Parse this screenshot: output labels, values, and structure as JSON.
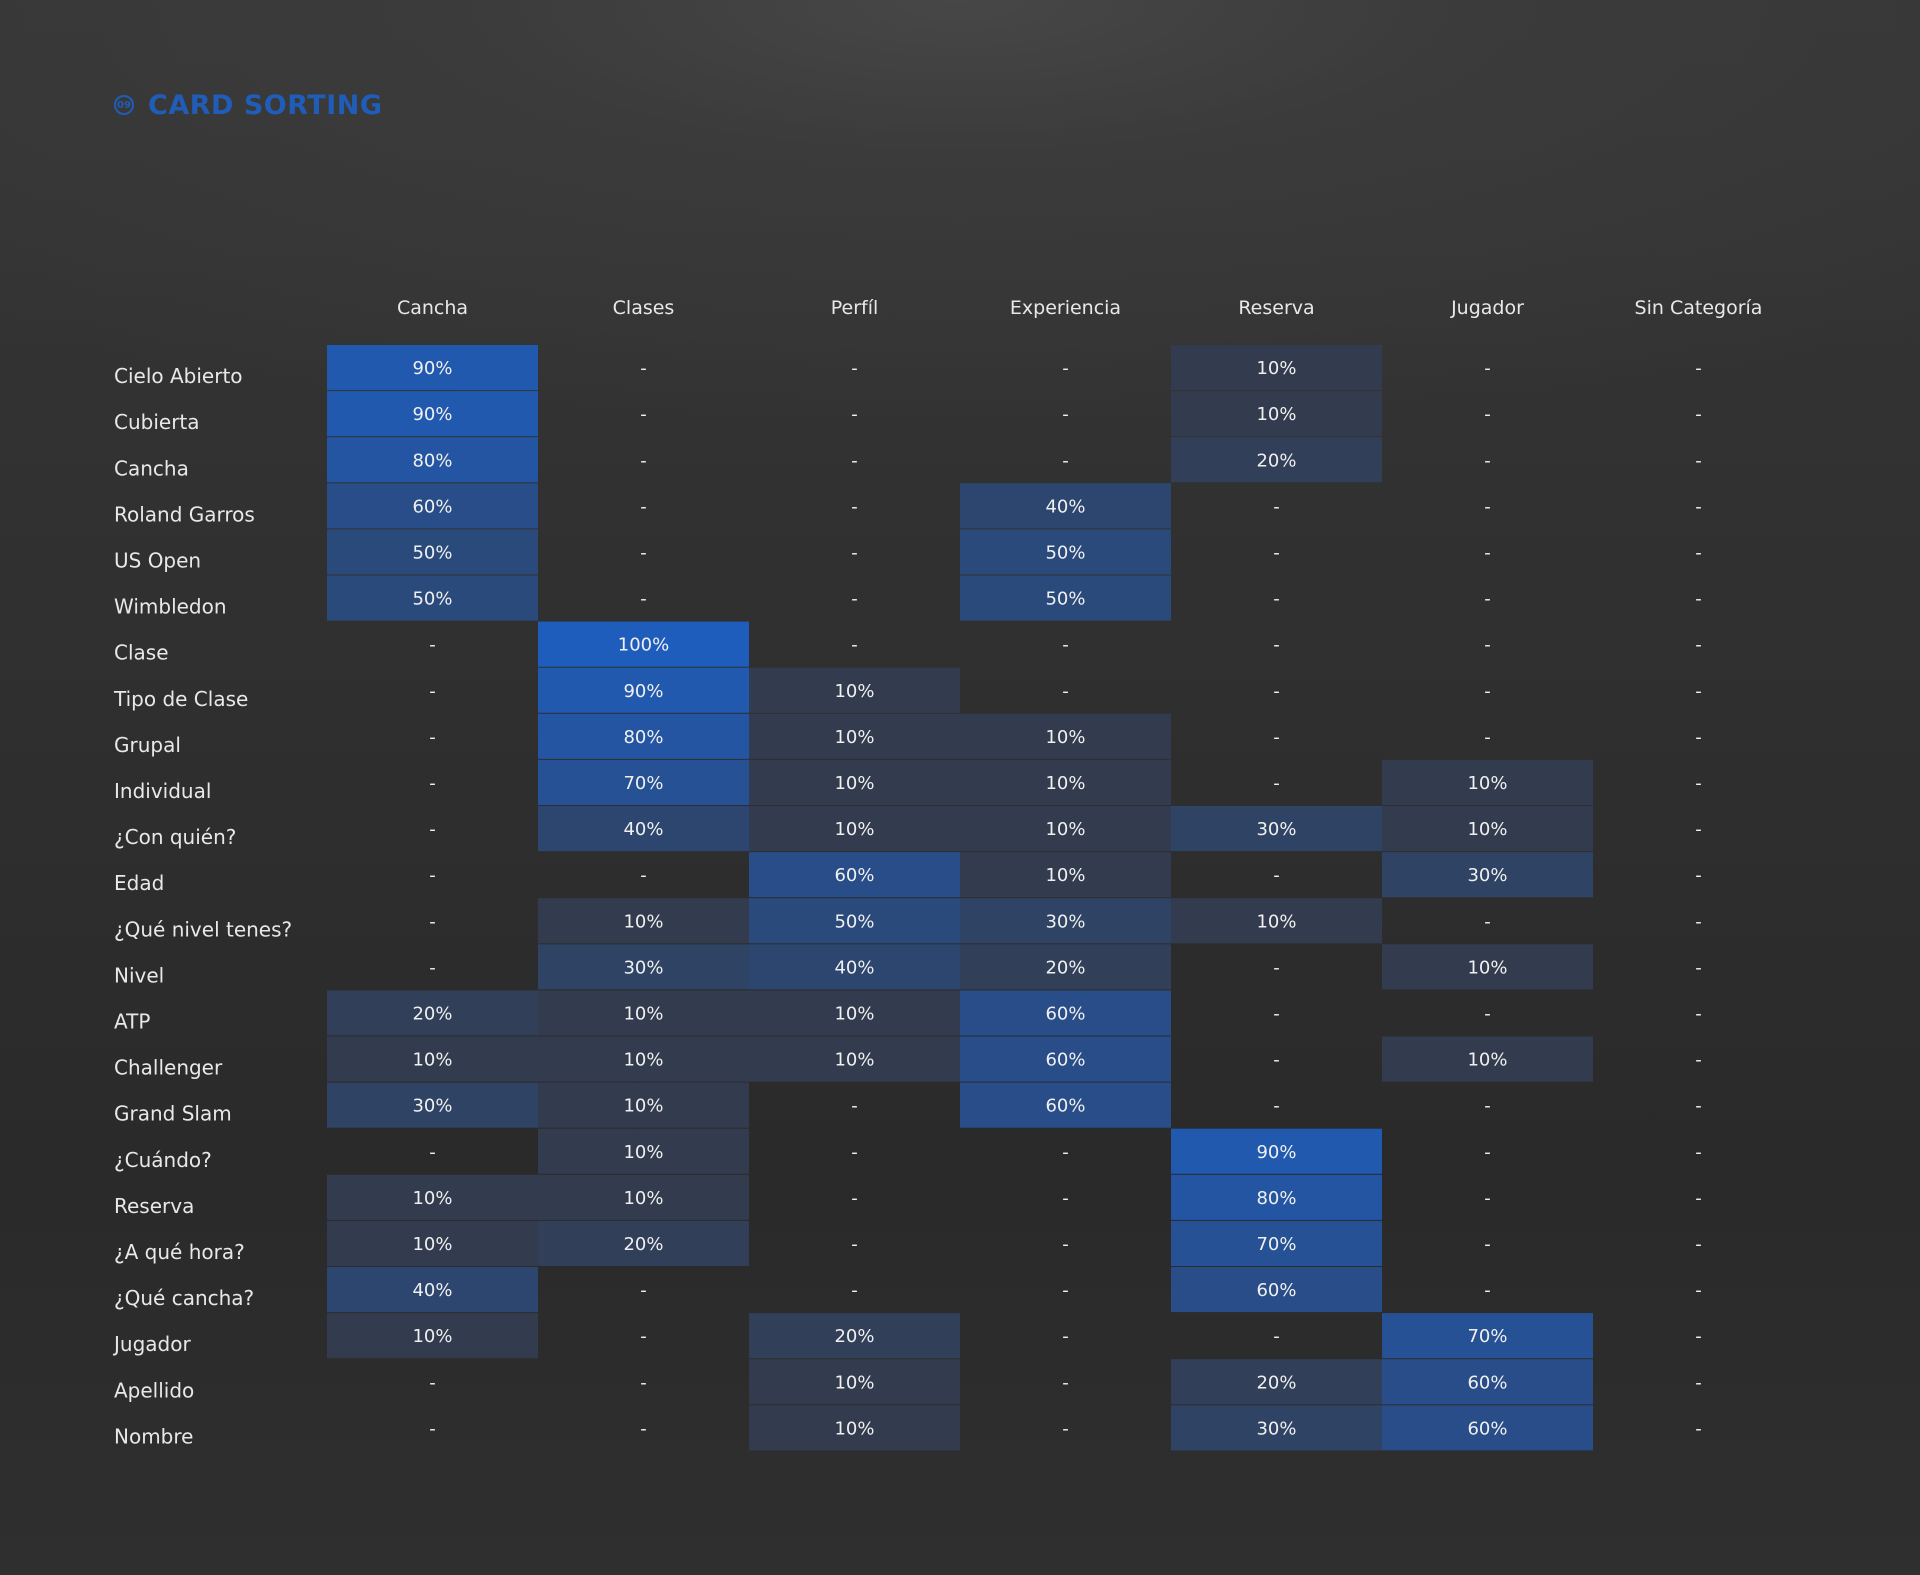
{
  "header": {
    "badge": "09",
    "title": "CARD SORTING"
  },
  "colors": {
    "accent": "#1f5db9",
    "cell_base": "#343a46",
    "cell_full": "#1f5dbd",
    "background": "#2f2f2f"
  },
  "chart_data": {
    "type": "heatmap",
    "columns": [
      "Cancha",
      "Clases",
      "Perfíl",
      "Experiencia",
      "Reserva",
      "Jugador",
      "Sin Categoría"
    ],
    "rows": [
      "Cielo Abierto",
      "Cubierta",
      "Cancha",
      "Roland Garros",
      "US Open",
      "Wimbledon",
      "Clase",
      "Tipo de Clase",
      "Grupal",
      "Individual",
      "¿Con quién?",
      "Edad",
      "¿Qué nivel tenes?",
      "Nivel",
      "ATP",
      "Challenger",
      "Grand Slam",
      "¿Cuándo?",
      "Reserva",
      "¿A qué hora?",
      "¿Qué cancha?",
      "Jugador",
      "Apellido",
      "Nombre"
    ],
    "values": [
      [
        90,
        null,
        null,
        null,
        10,
        null,
        null
      ],
      [
        90,
        null,
        null,
        null,
        10,
        null,
        null
      ],
      [
        80,
        null,
        null,
        null,
        20,
        null,
        null
      ],
      [
        60,
        null,
        null,
        40,
        null,
        null,
        null
      ],
      [
        50,
        null,
        null,
        50,
        null,
        null,
        null
      ],
      [
        50,
        null,
        null,
        50,
        null,
        null,
        null
      ],
      [
        null,
        100,
        null,
        null,
        null,
        null,
        null
      ],
      [
        null,
        90,
        10,
        null,
        null,
        null,
        null
      ],
      [
        null,
        80,
        10,
        10,
        null,
        null,
        null
      ],
      [
        null,
        70,
        10,
        10,
        null,
        10,
        null
      ],
      [
        null,
        40,
        10,
        10,
        30,
        10,
        null
      ],
      [
        null,
        null,
        60,
        10,
        null,
        30,
        null
      ],
      [
        null,
        10,
        50,
        30,
        10,
        null,
        null
      ],
      [
        null,
        30,
        40,
        20,
        null,
        10,
        null
      ],
      [
        20,
        10,
        10,
        60,
        null,
        null,
        null
      ],
      [
        10,
        10,
        10,
        60,
        null,
        10,
        null
      ],
      [
        30,
        10,
        null,
        60,
        null,
        null,
        null
      ],
      [
        null,
        10,
        null,
        null,
        90,
        null,
        null
      ],
      [
        10,
        10,
        null,
        null,
        80,
        null,
        null
      ],
      [
        10,
        20,
        null,
        null,
        70,
        null,
        null
      ],
      [
        40,
        null,
        null,
        null,
        60,
        null,
        null
      ],
      [
        10,
        null,
        20,
        null,
        null,
        70,
        null
      ],
      [
        null,
        null,
        10,
        null,
        20,
        60,
        null
      ],
      [
        null,
        null,
        10,
        null,
        30,
        60,
        null
      ]
    ],
    "empty_symbol": "-",
    "value_suffix": "%",
    "value_range": [
      0,
      100
    ],
    "grid": false,
    "legend": "none"
  }
}
